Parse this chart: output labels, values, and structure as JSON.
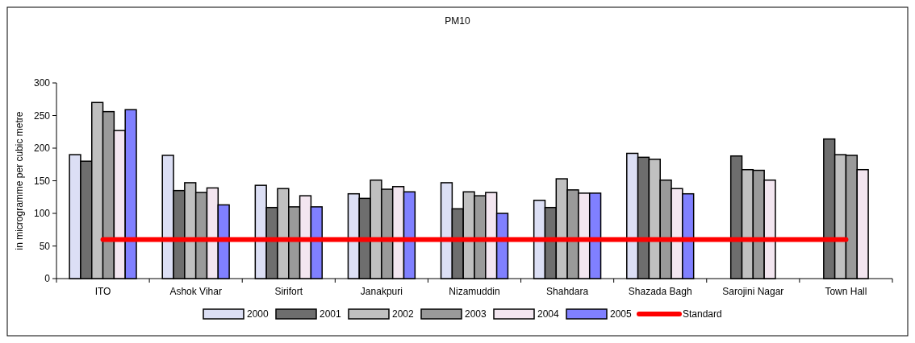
{
  "chart_data": {
    "type": "bar",
    "title": "PM10",
    "ylabel": "in microgramme per cubic metre",
    "categories": [
      "ITO",
      "Ashok Vihar",
      "Sirifort",
      "Janakpuri",
      "Nizamuddin",
      "Shahdara",
      "Shazada Bagh",
      "Sarojini Nagar",
      "Town Hall"
    ],
    "series": [
      {
        "name": "2000",
        "color": "#dcdff5",
        "values": [
          190,
          189,
          143,
          130,
          147,
          120,
          192,
          null,
          null
        ]
      },
      {
        "name": "2001",
        "color": "#6e6e6e",
        "values": [
          180,
          135,
          109,
          123,
          107,
          109,
          186,
          188,
          214
        ]
      },
      {
        "name": "2002",
        "color": "#c0c0c0",
        "values": [
          270,
          147,
          138,
          151,
          133,
          153,
          183,
          167,
          190
        ]
      },
      {
        "name": "2003",
        "color": "#9a9a9a",
        "values": [
          256,
          132,
          110,
          137,
          127,
          136,
          151,
          166,
          189
        ]
      },
      {
        "name": "2004",
        "color": "#f3e6f0",
        "values": [
          227,
          139,
          127,
          141,
          132,
          131,
          138,
          151,
          167
        ]
      },
      {
        "name": "2005",
        "color": "#8080ff",
        "values": [
          259,
          113,
          110,
          133,
          100,
          131,
          130,
          null,
          null
        ]
      },
      {
        "name": "Standard",
        "type": "line",
        "color": "#ff0000",
        "values": [
          60,
          60,
          60,
          60,
          60,
          60,
          60,
          60,
          60
        ]
      }
    ],
    "ylim": [
      0,
      300
    ],
    "yticks": [
      0,
      50,
      100,
      150,
      200,
      250,
      300
    ],
    "grid": false,
    "legend": "bottom"
  }
}
